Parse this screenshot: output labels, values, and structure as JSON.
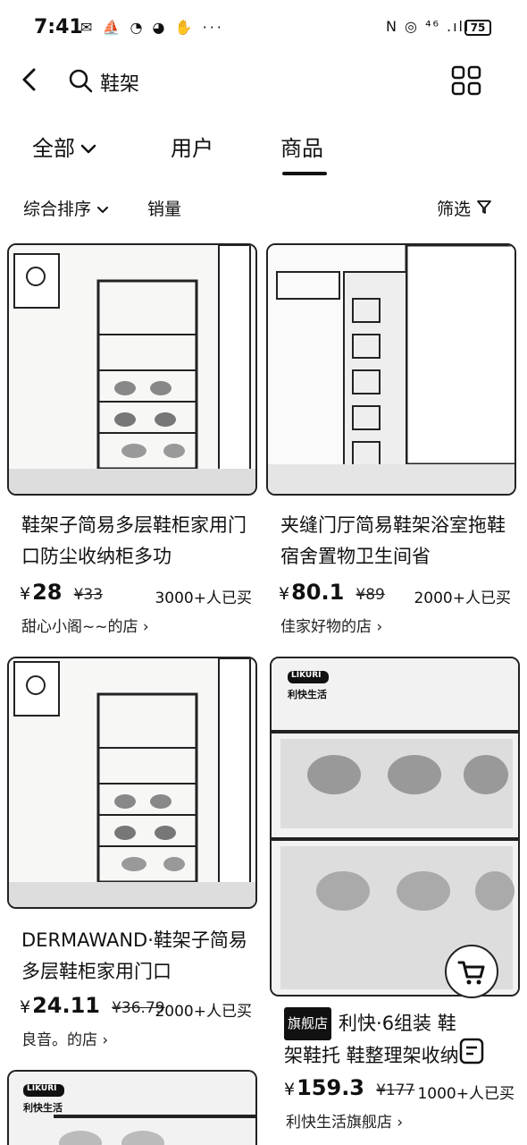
{
  "status": {
    "time": "7:41",
    "left_icons": "✉ ⛵ ◔ ◕ ✋ ···",
    "right_icons": "N ◎ ⁴⁶ .ıll",
    "battery": "75"
  },
  "search": {
    "query": "鞋架"
  },
  "tabs": {
    "all": "全部",
    "users": "用户",
    "products": "商品"
  },
  "sort": {
    "overall": "综合排序",
    "sales": "销量",
    "filter": "筛选"
  },
  "products": [
    {
      "title": "鞋架子简易多层鞋柜家用门口防尘收纳柜多功",
      "price_symbol": "¥",
      "price": "28",
      "orig_price": "¥33",
      "sold": "3000+人已买",
      "shop": "甜心小阁~~的店 ›"
    },
    {
      "title": "夹缝门厅简易鞋架浴室拖鞋宿舍置物卫生间省",
      "price_symbol": "¥",
      "price": "80.1",
      "orig_price": "¥89",
      "sold": "2000+人已买",
      "shop": "佳家好物的店 ›"
    },
    {
      "title": "DERMAWAND·鞋架子简易多层鞋柜家用门口",
      "price_symbol": "¥",
      "price": "24.11",
      "orig_price": "¥36.79",
      "sold": "2000+人已买",
      "shop": "良音。的店 ›"
    },
    {
      "badge": "旗舰店",
      "title": "利快·6组装 鞋架鞋托 鞋整理架收纳",
      "price_symbol": "¥",
      "price": "159.3",
      "orig_price": "¥177",
      "sold": "1000+人已买",
      "shop": "利快生活旗舰店 ›",
      "brand_label": "利快生活",
      "brand_logo": "LIKURI"
    },
    {
      "brand_label": "利快生活",
      "brand_logo": "LIKURI"
    }
  ]
}
